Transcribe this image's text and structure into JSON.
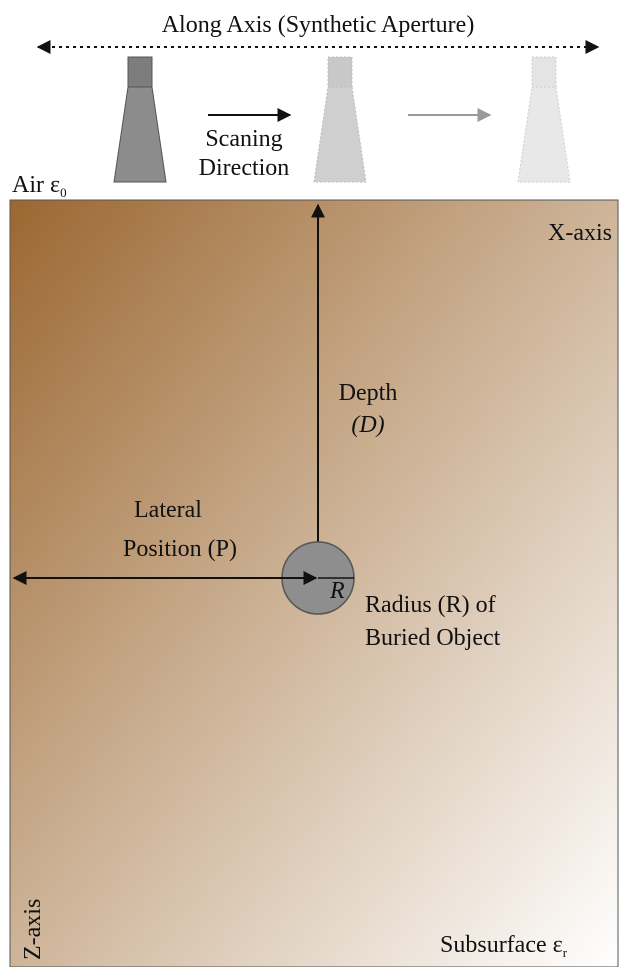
{
  "header": {
    "title": "Along Axis (Synthetic Aperture)"
  },
  "scan": {
    "line1": "Scaning",
    "line2": "Direction"
  },
  "air": {
    "text": "Air",
    "symbol": "ε",
    "subscript": "0"
  },
  "x_axis": "X-axis",
  "z_axis": "Z-axis",
  "depth": {
    "line1": "Depth",
    "line2": "(D)"
  },
  "lateral": {
    "line1": "Lateral",
    "line2": "Position (P)"
  },
  "radius_symbol": "R",
  "radius": {
    "line1": "Radius (R) of",
    "line2": "Buried Object"
  },
  "subsurface": {
    "text": "Subsurface",
    "symbol": "ε",
    "subscript": "r"
  }
}
